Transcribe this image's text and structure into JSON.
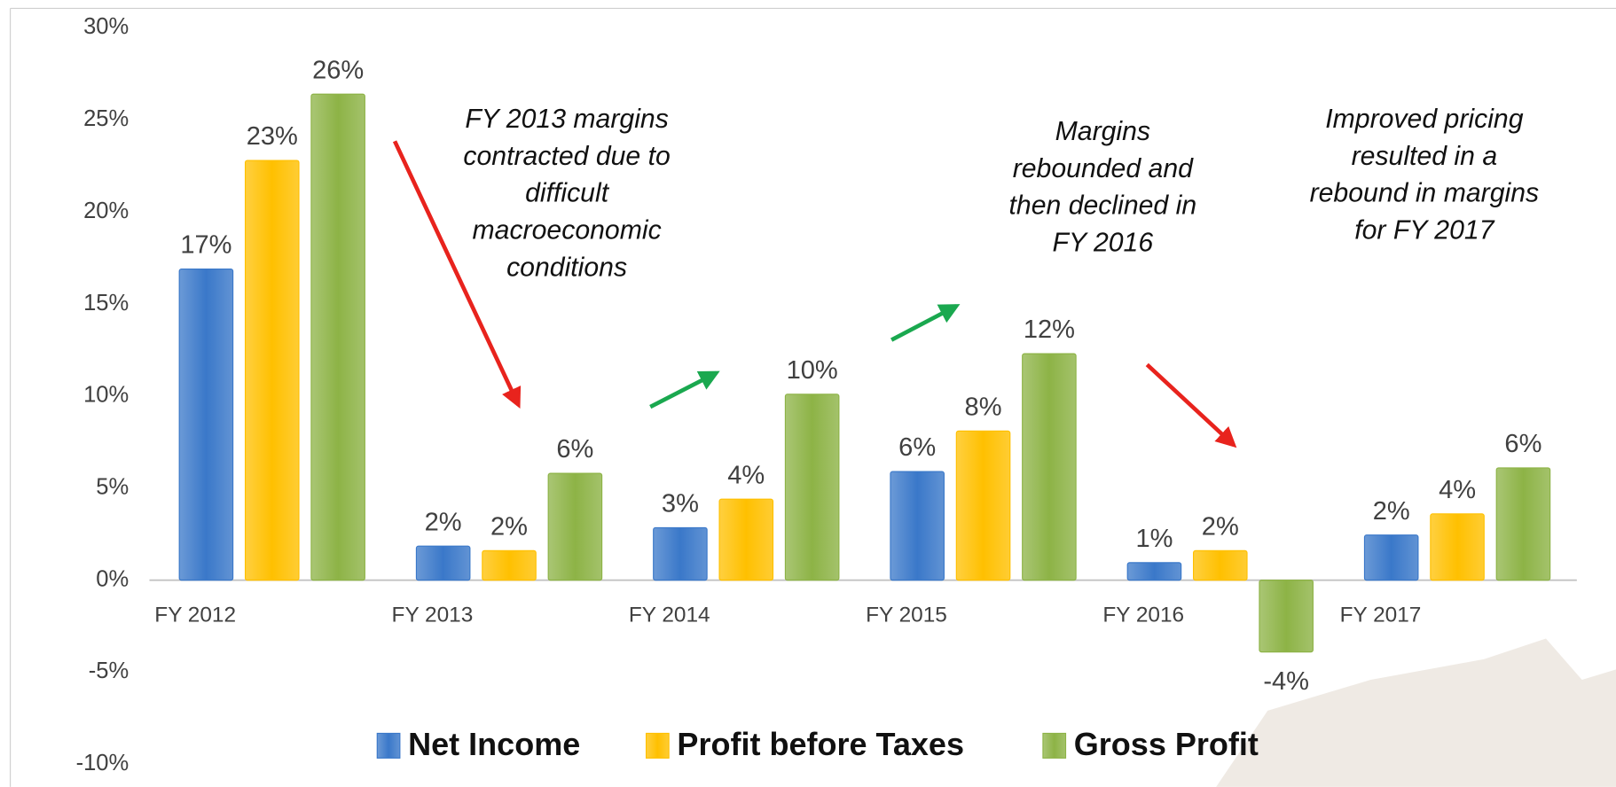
{
  "chart_data": {
    "type": "bar",
    "categories": [
      "FY 2012",
      "FY 2013",
      "FY 2014",
      "FY 2015",
      "FY 2016",
      "FY 2017"
    ],
    "series": [
      {
        "name": "Net Income",
        "color": "#3a78c9",
        "values": [
          16.9,
          1.85,
          2.85,
          5.9,
          0.95,
          2.45
        ],
        "value_labels": [
          "17%",
          "2%",
          "3%",
          "6%",
          "1%",
          "2%"
        ]
      },
      {
        "name": "Profit before Taxes",
        "color": "#ffc000",
        "values": [
          22.8,
          1.6,
          4.4,
          8.1,
          1.6,
          3.6
        ],
        "value_labels": [
          "23%",
          "2%",
          "4%",
          "8%",
          "2%",
          "4%"
        ]
      },
      {
        "name": "Gross Profit",
        "color": "#8db346",
        "values": [
          26.4,
          5.8,
          10.1,
          12.3,
          -3.9,
          6.1
        ],
        "value_labels": [
          "26%",
          "6%",
          "10%",
          "12%",
          "-4%",
          "6%"
        ]
      }
    ],
    "ylim": [
      -10,
      30
    ],
    "yticks": [
      {
        "value": -10,
        "label": "-10%"
      },
      {
        "value": -5,
        "label": "-5%"
      },
      {
        "value": 0,
        "label": "0%"
      },
      {
        "value": 5,
        "label": "5%"
      },
      {
        "value": 10,
        "label": "10%"
      },
      {
        "value": 15,
        "label": "15%"
      },
      {
        "value": 20,
        "label": "20%"
      },
      {
        "value": 25,
        "label": "25%"
      },
      {
        "value": 30,
        "label": "30%"
      }
    ],
    "annotations": [
      [
        "FY 2013 margins",
        "contracted due to",
        "difficult",
        "macroeconomic",
        "conditions"
      ],
      [
        "Margins",
        "rebounded and",
        "then declined in",
        "FY 2016"
      ],
      [
        "Improved pricing",
        "resulted in a",
        "rebound in margins",
        "for FY 2017"
      ]
    ]
  }
}
